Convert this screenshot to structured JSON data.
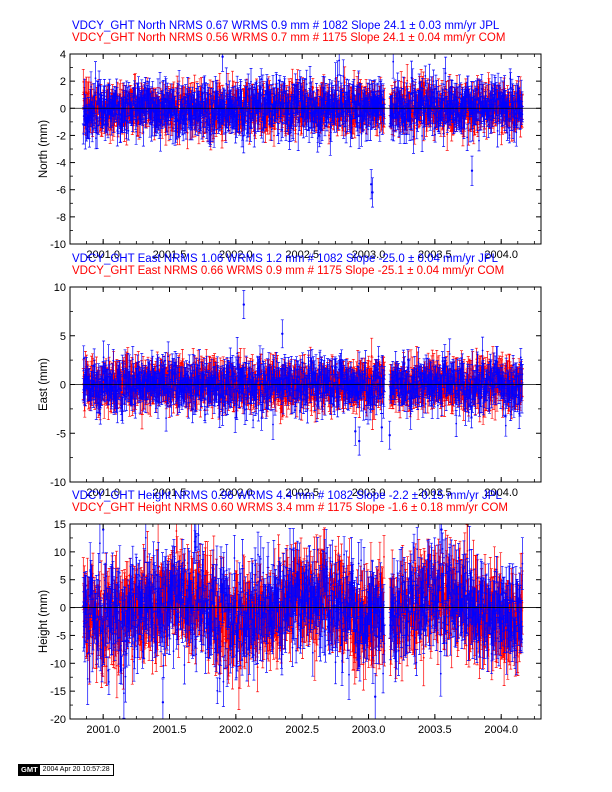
{
  "chart_data": [
    {
      "type": "scatter",
      "component": "North",
      "ylabel": "North (mm)",
      "ylim": [
        -10,
        4
      ],
      "yticks": [
        4,
        2,
        0,
        -2,
        -4,
        -6,
        -8,
        -10
      ],
      "xlim": [
        2000.75,
        2004.3
      ],
      "xticks": [
        "2001.0",
        "2001.5",
        "2002.0",
        "2002.5",
        "2003.0",
        "2003.5",
        "2004.0"
      ],
      "series": [
        {
          "name": "JPL",
          "color": "#0000ff",
          "label": "VDCY_GHT North NRMS 0.67 WRMS  0.9 mm # 1082 Slope   24.1 ±  0.03 mm/yr JPL",
          "count": 1082,
          "scatter_wrms_mm": 0.9,
          "err_mm": 0.9
        },
        {
          "name": "COM",
          "color": "#ff0000",
          "label": "VDCY_GHT North NRMS 0.56 WRMS  0.7 mm # 1175 Slope   24.1 ±  0.04 mm/yr COM",
          "count": 1175,
          "scatter_wrms_mm": 0.7,
          "err_mm": 0.9
        }
      ],
      "gaps": [
        [
          2003.12,
          2003.16
        ]
      ],
      "outliers": [
        {
          "x": 2003.02,
          "y": -5.6
        },
        {
          "x": 2003.03,
          "y": -6.2
        },
        {
          "x": 2003.78,
          "y": -4.6
        },
        {
          "x": 2001.9,
          "y": 3.8
        }
      ]
    },
    {
      "type": "scatter",
      "component": "East",
      "ylabel": "East (mm)",
      "ylim": [
        -10,
        10
      ],
      "yticks": [
        10,
        5,
        0,
        -5,
        -10
      ],
      "xlim": [
        2000.75,
        2004.3
      ],
      "xticks": [
        "2001.0",
        "2001.5",
        "2002.0",
        "2002.5",
        "2003.0",
        "2003.5",
        "2004.0"
      ],
      "series": [
        {
          "name": "JPL",
          "color": "#0000ff",
          "label": "VDCY_GHT East NRMS 1.06 WRMS  1.2 mm # 1082 Slope  -25.0 ±  0.04 mm/yr JPL",
          "count": 1082,
          "scatter_wrms_mm": 1.2,
          "err_mm": 1.2
        },
        {
          "name": "COM",
          "color": "#ff0000",
          "label": "VDCY_GHT East NRMS 0.66 WRMS  0.9 mm # 1175 Slope  -25.1 ±  0.04 mm/yr COM",
          "count": 1175,
          "scatter_wrms_mm": 0.9,
          "err_mm": 1.4
        }
      ],
      "gaps": [
        [
          2003.12,
          2003.16
        ]
      ],
      "outliers": [
        {
          "x": 2002.06,
          "y": 8.2
        },
        {
          "x": 2002.35,
          "y": 5.2
        },
        {
          "x": 2002.9,
          "y": -4.8
        },
        {
          "x": 2002.93,
          "y": -5.8
        },
        {
          "x": 2003.1,
          "y": -4.4
        },
        {
          "x": 2003.16,
          "y": -5.2
        }
      ]
    },
    {
      "type": "scatter",
      "component": "Height",
      "ylabel": "Height (mm)",
      "ylim": [
        -20,
        15
      ],
      "yticks": [
        15,
        10,
        5,
        0,
        -5,
        -10,
        -15,
        -20
      ],
      "xlim": [
        2000.75,
        2004.3
      ],
      "xticks": [
        "2001.0",
        "2001.5",
        "2002.0",
        "2002.5",
        "2003.0",
        "2003.5",
        "2004.0"
      ],
      "series": [
        {
          "name": "JPL",
          "color": "#0000ff",
          "label": "VDCY_GHT Height NRMS 0.96 WRMS  4.4 mm # 1082 Slope   -2.2 ±  0.15 mm/yr JPL",
          "count": 1082,
          "scatter_wrms_mm": 4.4,
          "err_mm": 3.5
        },
        {
          "name": "COM",
          "color": "#ff0000",
          "label": "VDCY_GHT Height NRMS 0.60 WRMS  3.4 mm # 1175 Slope   -1.6 ±  0.18 mm/yr COM",
          "count": 1175,
          "scatter_wrms_mm": 3.4,
          "err_mm": 4.5
        }
      ],
      "gaps": [
        [
          2003.12,
          2003.16
        ]
      ],
      "outliers": [
        {
          "x": 2001.45,
          "y": -17
        },
        {
          "x": 2003.05,
          "y": -16
        },
        {
          "x": 2001.0,
          "y": 14
        },
        {
          "x": 2003.55,
          "y": 14
        }
      ]
    }
  ],
  "stamp": {
    "logo": "GMT",
    "datetime": "2004 Apr 20 10:57:28"
  }
}
